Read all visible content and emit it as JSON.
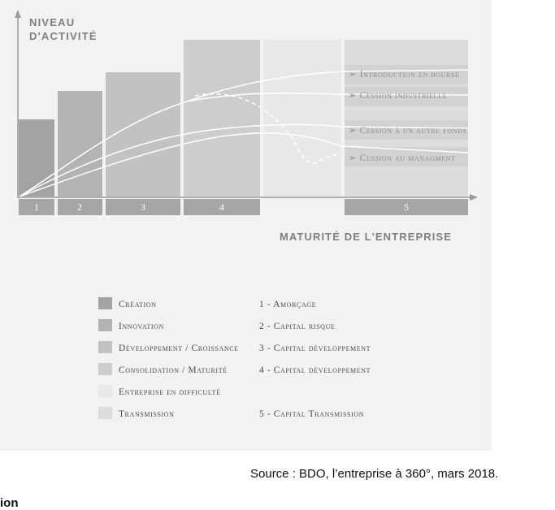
{
  "diagram": {
    "y_axis_title": [
      "NIVEAU",
      "D'ACTIVITÉ"
    ],
    "x_axis_title": "MATURITÉ DE L'ENTREPRISE",
    "stages": [
      {
        "num": "1",
        "legend": "Création",
        "color": "#a3a3a3"
      },
      {
        "num": "2",
        "legend": "Innovation",
        "color": "#b3b3b3"
      },
      {
        "num": "3",
        "legend": "Développement / Croissance",
        "color": "#c2c2c2"
      },
      {
        "num": "4",
        "legend": "Consolidation / Maturité",
        "color": "#cdcdcd"
      },
      {
        "num": "",
        "legend": "Entreprise en difficulté",
        "color": "#e8e8e8"
      },
      {
        "num": "5",
        "legend": "Transmission",
        "color": "#dddddd"
      }
    ],
    "exits": [
      "➢ Introduction en bourse",
      "➢ Cession industrielle",
      "➢ Cession à un autre fonds",
      "➢ Cession au managment"
    ],
    "financing": [
      "1 - Amorçage",
      "2 - Capital risque",
      "3 - Capital développement",
      "4 - Capital développement",
      "",
      "5 - Capital Transmission"
    ],
    "colors": {
      "background": "#f2f2f2",
      "axis": "#9a9a9a",
      "stage_bar": "#a6a6a6",
      "curve": "#ffffff"
    }
  },
  "source": "Source : BDO, l’entreprise à 360°, mars 2018.",
  "cut_text": "ion"
}
